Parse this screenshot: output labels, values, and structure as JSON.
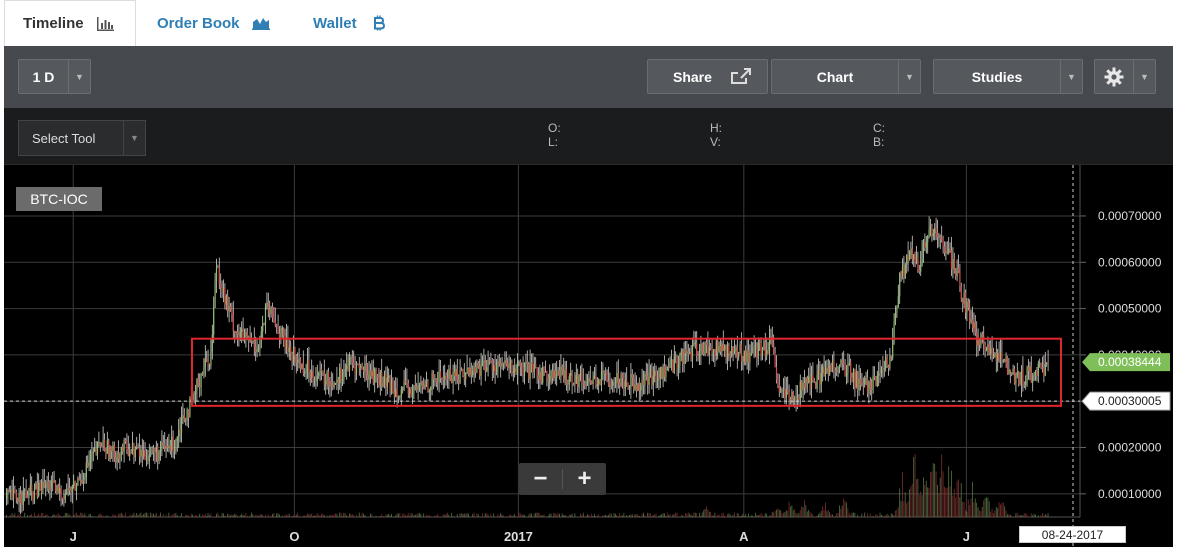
{
  "tabs": [
    {
      "label": "Timeline",
      "icon": "bar-chart-icon"
    },
    {
      "label": "Order Book",
      "icon": "area-chart-icon"
    },
    {
      "label": "Wallet",
      "icon": "bitcoin-icon"
    }
  ],
  "toolbar": {
    "period_label": "1 D",
    "share_label": "Share",
    "chart_label": "Chart",
    "studies_label": "Studies"
  },
  "subbar": {
    "select_tool_label": "Select Tool",
    "o_label": "O:",
    "l_label": "L:",
    "h_label": "H:",
    "v_label": "V:",
    "c_label": "C:",
    "b_label": "B:"
  },
  "chart": {
    "symbol": "BTC-IOC",
    "zoom_out": "−",
    "zoom_in": "+",
    "current_date": "08-24-2017",
    "colors": {
      "up": "#8fbf6f",
      "down": "#d45050",
      "highlight_box": "#e0262c",
      "price_tag": "#7fbf5a",
      "grid": "#3c3c3c"
    }
  },
  "chart_data": {
    "type": "candlestick",
    "x_tick_labels": [
      "J",
      "O",
      "2017",
      "A",
      "J"
    ],
    "y_tick_labels": [
      "0.00070000",
      "0.00060000",
      "0.00050000",
      "0.00040000",
      "0.00030000",
      "0.00020000",
      "0.00010000"
    ],
    "ylim": [
      5e-05,
      0.00081
    ],
    "current_price": "0.00038444",
    "crosshair_price": "0.00030005",
    "highlight_range": [
      0.00029,
      0.000435
    ],
    "anchors": [
      [
        0,
        9e-05
      ],
      [
        18,
        0.0001
      ],
      [
        30,
        0.00012
      ],
      [
        38,
        0.0001
      ],
      [
        48,
        0.00011
      ],
      [
        58,
        0.00016
      ],
      [
        68,
        0.00021
      ],
      [
        76,
        0.000185
      ],
      [
        86,
        0.0002
      ],
      [
        98,
        0.000185
      ],
      [
        110,
        0.00019
      ],
      [
        120,
        0.00021
      ],
      [
        126,
        0.00027
      ],
      [
        132,
        0.00029
      ],
      [
        140,
        0.00037
      ],
      [
        146,
        0.0004
      ],
      [
        150,
        0.0006
      ],
      [
        156,
        0.00052
      ],
      [
        164,
        0.00045
      ],
      [
        172,
        0.00043
      ],
      [
        180,
        0.00042
      ],
      [
        186,
        0.0005
      ],
      [
        192,
        0.00047
      ],
      [
        200,
        0.00042
      ],
      [
        210,
        0.00038
      ],
      [
        220,
        0.00036
      ],
      [
        232,
        0.00034
      ],
      [
        246,
        0.00038
      ],
      [
        260,
        0.00036
      ],
      [
        276,
        0.00033
      ],
      [
        290,
        0.00032
      ],
      [
        308,
        0.00035
      ],
      [
        326,
        0.00036
      ],
      [
        344,
        0.00038
      ],
      [
        362,
        0.00037
      ],
      [
        380,
        0.00036
      ],
      [
        398,
        0.000355
      ],
      [
        416,
        0.000345
      ],
      [
        434,
        0.00035
      ],
      [
        452,
        0.00034
      ],
      [
        468,
        0.00036
      ],
      [
        484,
        0.0004
      ],
      [
        498,
        0.000415
      ],
      [
        514,
        0.00041
      ],
      [
        530,
        0.0004
      ],
      [
        546,
        0.00042
      ],
      [
        552,
        0.00032
      ],
      [
        560,
        0.0003
      ],
      [
        568,
        0.00033
      ],
      [
        580,
        0.00035
      ],
      [
        590,
        0.00038
      ],
      [
        600,
        0.00037
      ],
      [
        612,
        0.00033
      ],
      [
        622,
        0.00034
      ],
      [
        632,
        0.0004
      ],
      [
        638,
        0.00056
      ],
      [
        646,
        0.00062
      ],
      [
        652,
        0.00058
      ],
      [
        658,
        0.00067
      ],
      [
        666,
        0.00065
      ],
      [
        676,
        0.0006
      ],
      [
        684,
        0.00052
      ],
      [
        692,
        0.00044
      ],
      [
        702,
        0.00041
      ],
      [
        712,
        0.00039
      ],
      [
        722,
        0.00035
      ],
      [
        734,
        0.00036
      ],
      [
        744,
        0.00037
      ]
    ],
    "volume_spikes": [
      [
        500,
        0.12
      ],
      [
        550,
        0.16
      ],
      [
        560,
        0.22
      ],
      [
        570,
        0.2
      ],
      [
        585,
        0.18
      ],
      [
        598,
        0.26
      ],
      [
        640,
        0.52
      ],
      [
        648,
        0.95
      ],
      [
        656,
        0.74
      ],
      [
        662,
        1.0
      ],
      [
        668,
        0.7
      ],
      [
        674,
        0.82
      ],
      [
        680,
        0.64
      ],
      [
        690,
        0.45
      ],
      [
        700,
        0.3
      ],
      [
        710,
        0.25
      ]
    ]
  }
}
